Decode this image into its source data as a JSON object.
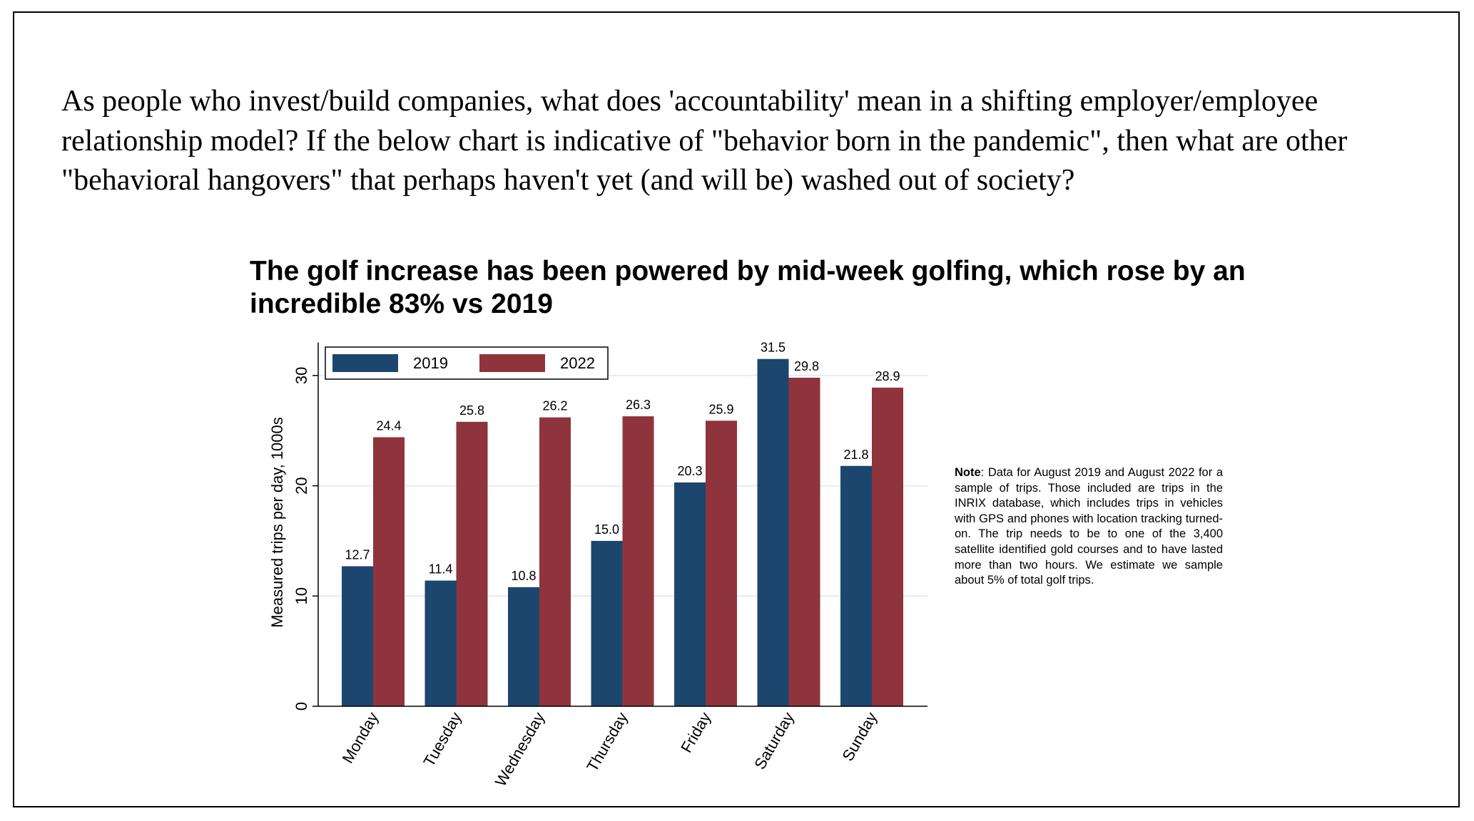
{
  "question": "As people who invest/build companies, what does 'accountability' mean in a shifting employer/employee relationship model? If the below chart is indicative of \"behavior born in the pandemic\", then what are other \"behavioral hangovers\" that perhaps haven't yet (and will be) washed out of society?",
  "note": {
    "label": "Note",
    "text": ": Data for August 2019 and August 2022 for a sample of trips. Those included are trips in the INRIX database, which includes trips in vehicles with GPS and phones with location tracking turned-on. The trip needs to be to one of the 3,400 satellite identified gold courses and to have lasted more than two hours. We estimate we sample about 5% of total golf trips."
  },
  "chart_data": {
    "type": "bar",
    "title": "The golf increase has been powered by mid-week golfing, which rose by an incredible 83% vs 2019",
    "xlabel": "",
    "ylabel": "Measured trips per day, 1000s",
    "ylim": [
      0,
      33
    ],
    "yticks": [
      0,
      10,
      20,
      30
    ],
    "grid": true,
    "legend_position": "top-left",
    "categories": [
      "Monday",
      "Tuesday",
      "Wednesday",
      "Thursday",
      "Friday",
      "Saturday",
      "Sunday"
    ],
    "series": [
      {
        "name": "2019",
        "color": "#1c466e",
        "values": [
          12.7,
          11.4,
          10.8,
          15.0,
          20.3,
          31.5,
          21.8
        ],
        "labels": [
          "12.7",
          "11.4",
          "10.8",
          "15.0",
          "20.3",
          "31.5",
          "21.8"
        ]
      },
      {
        "name": "2022",
        "color": "#8f343c",
        "values": [
          24.4,
          25.8,
          26.2,
          26.3,
          25.9,
          29.8,
          28.9
        ],
        "labels": [
          "24.4",
          "25.8",
          "26.2",
          "26.3",
          "25.9",
          "29.8",
          "28.9"
        ]
      }
    ]
  }
}
